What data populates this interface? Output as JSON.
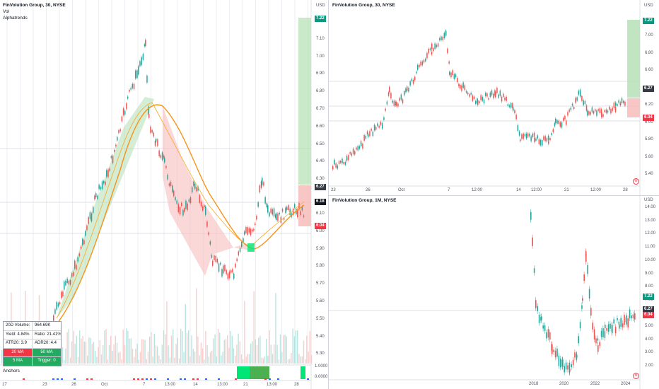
{
  "colors": {
    "up": "#26a69a",
    "down": "#ef5350",
    "ma_orange": "#f7931a",
    "profit_zone": "#b2dfb0",
    "loss_zone": "#f7b8b8",
    "grid": "#e0e3eb",
    "green_tag": "#089981",
    "red_tag": "#f23645",
    "dark_tag": "#363a45"
  },
  "left_panel": {
    "title": "FinVolution Group, 30, NYSE",
    "subtitle_1": "Vol",
    "subtitle_2": "Alphatrends",
    "currency": "USD",
    "price_axis": [
      "7.20",
      "7.10",
      "7.00",
      "6.90",
      "6.80",
      "6.70",
      "6.60",
      "6.50",
      "6.40",
      "6.30",
      "6.10",
      "6.00",
      "5.90",
      "5.80",
      "5.70",
      "5.60",
      "5.50",
      "5.40",
      "5.30"
    ],
    "price_tags": {
      "target": "7.22",
      "current": "6.27",
      "last": "6.18",
      "stop": "6.04"
    },
    "indicator_axis": "1.0000",
    "indicator_axis_low": "0.0000",
    "anchors_label": "Anchors",
    "time_axis": [
      "17",
      "23",
      "26",
      "Oct",
      "7",
      "13:00",
      "14",
      "13:00",
      "21",
      "13:00",
      "28"
    ],
    "stats": {
      "volume_label": "20D Volume:",
      "volume_value": "964.69K",
      "yield": "Yield: 4.84%",
      "ratio": "Ratio: 21.41%",
      "atr": "ATR20: 3.9",
      "adr": "ADR20: 4.4",
      "ma20": "20 MA",
      "ma50": "50 MA",
      "ma5": "5 MA",
      "trigger": "Trigger: 0"
    }
  },
  "top_right_panel": {
    "title": "FinVolution Group, 30, NYSE",
    "currency": "USD",
    "price_axis": [
      "7.00",
      "6.80",
      "6.60",
      "6.40",
      "6.20",
      "6.00",
      "5.80",
      "5.60",
      "5.40"
    ],
    "price_tags": {
      "target": "7.22",
      "current": "6.27",
      "stop": "6.04"
    },
    "time_axis": [
      "23",
      "26",
      "Oct",
      "7",
      "12:00",
      "14",
      "12:00",
      "21",
      "12:00",
      "28"
    ]
  },
  "bottom_right_panel": {
    "title": "FinVolution Group, 1M, NYSE",
    "currency": "USD",
    "price_axis": [
      "14.00",
      "13.00",
      "12.00",
      "11.00",
      "10.00",
      "9.00",
      "8.00",
      "7.00",
      "5.00",
      "4.00",
      "3.00",
      "2.00"
    ],
    "price_tags": {
      "target": "7.22",
      "current": "6.27",
      "stop": "6.04"
    },
    "time_axis": [
      "2018",
      "2020",
      "2022",
      "2024"
    ]
  }
}
